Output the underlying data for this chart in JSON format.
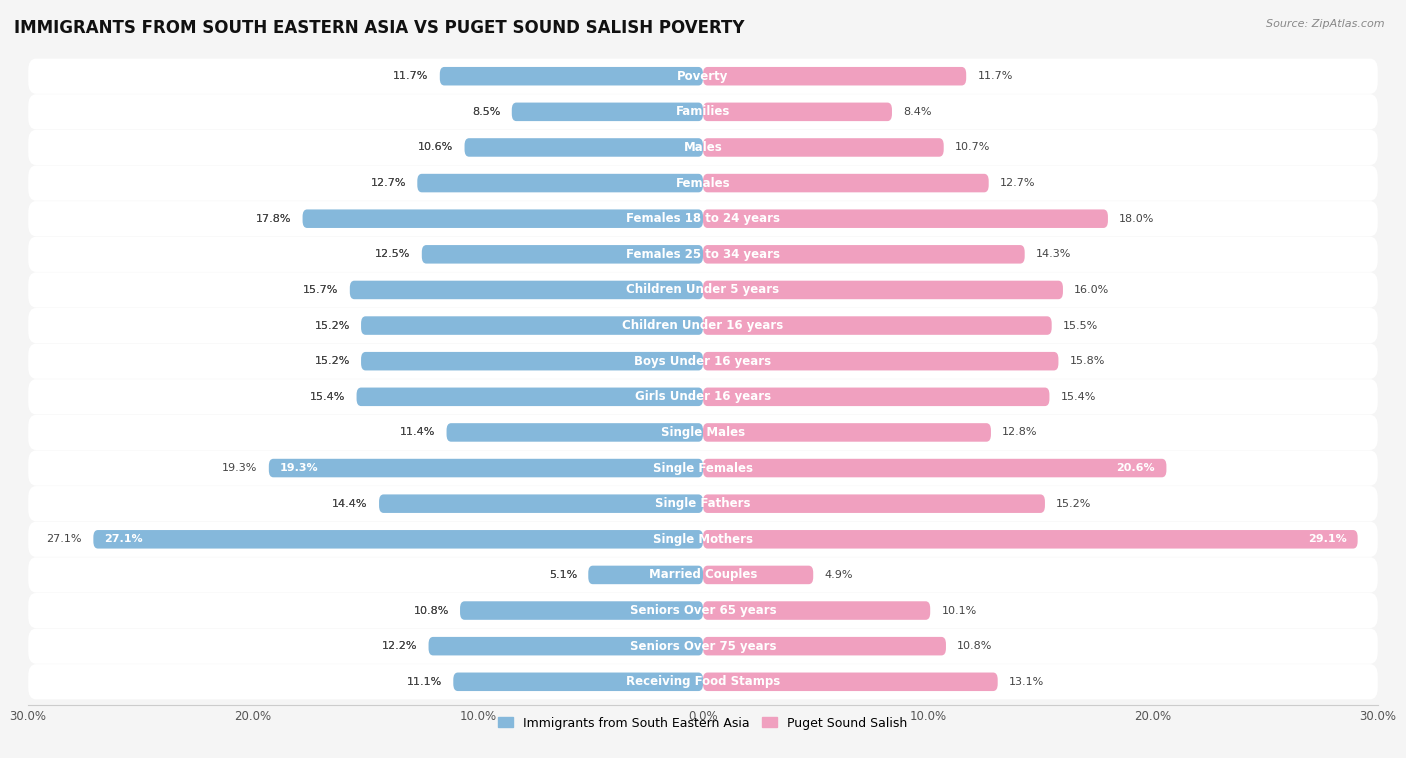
{
  "title": "IMMIGRANTS FROM SOUTH EASTERN ASIA VS PUGET SOUND SALISH POVERTY",
  "source": "Source: ZipAtlas.com",
  "categories": [
    "Poverty",
    "Families",
    "Males",
    "Females",
    "Females 18 to 24 years",
    "Females 25 to 34 years",
    "Children Under 5 years",
    "Children Under 16 years",
    "Boys Under 16 years",
    "Girls Under 16 years",
    "Single Males",
    "Single Females",
    "Single Fathers",
    "Single Mothers",
    "Married Couples",
    "Seniors Over 65 years",
    "Seniors Over 75 years",
    "Receiving Food Stamps"
  ],
  "left_values": [
    11.7,
    8.5,
    10.6,
    12.7,
    17.8,
    12.5,
    15.7,
    15.2,
    15.2,
    15.4,
    11.4,
    19.3,
    14.4,
    27.1,
    5.1,
    10.8,
    12.2,
    11.1
  ],
  "right_values": [
    11.7,
    8.4,
    10.7,
    12.7,
    18.0,
    14.3,
    16.0,
    15.5,
    15.8,
    15.4,
    12.8,
    20.6,
    15.2,
    29.1,
    4.9,
    10.1,
    10.8,
    13.1
  ],
  "left_color": "#85b8db",
  "right_color": "#f0a0bf",
  "row_bg_color": "#e8e8e8",
  "bar_bg_color": "#ffffff",
  "fig_bg_color": "#f5f5f5",
  "axis_max": 30.0,
  "legend_left": "Immigrants from South Eastern Asia",
  "legend_right": "Puget Sound Salish",
  "title_fontsize": 12,
  "cat_fontsize": 8.5,
  "value_fontsize": 8.0
}
